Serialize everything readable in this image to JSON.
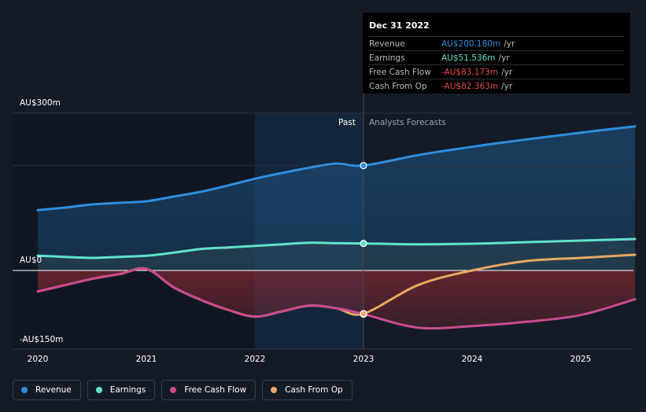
{
  "chart_data": {
    "type": "line",
    "title": "",
    "xlabel": "",
    "ylabel": "",
    "ylim": [
      -150,
      300
    ],
    "y_tick_labels": [
      "AU$300m",
      "AU$0",
      "-AU$150m"
    ],
    "x_ticks": [
      2020,
      2021,
      2022,
      2023,
      2024,
      2025
    ],
    "x_tick_labels": [
      "2020",
      "2021",
      "2022",
      "2023",
      "2024",
      "2025"
    ],
    "past_label": "Past",
    "forecast_label": "Analysts Forecasts",
    "divider_x": 2023.0,
    "highlight_start_x": 2022.0,
    "series": [
      {
        "name": "Revenue",
        "color": "#2d8fe0",
        "x": [
          2020.0,
          2020.25,
          2020.5,
          2020.75,
          2021.0,
          2021.25,
          2021.5,
          2021.75,
          2022.0,
          2022.25,
          2022.5,
          2022.75,
          2023.0,
          2023.5,
          2024.0,
          2024.5,
          2025.0,
          2025.5
        ],
        "values": [
          115,
          120,
          126,
          129,
          132,
          141,
          150,
          162,
          175,
          186,
          196,
          204,
          200.18,
          220,
          236,
          250,
          263,
          275
        ]
      },
      {
        "name": "Earnings",
        "color": "#5fe3c9",
        "x": [
          2020.0,
          2020.25,
          2020.5,
          2020.75,
          2021.0,
          2021.25,
          2021.5,
          2021.75,
          2022.0,
          2022.25,
          2022.5,
          2022.75,
          2023.0,
          2023.5,
          2024.0,
          2024.5,
          2025.0,
          2025.5
        ],
        "values": [
          28,
          26,
          24,
          26,
          28,
          34,
          41,
          44,
          47,
          50,
          53,
          52,
          51.536,
          50,
          51,
          54,
          57,
          60
        ]
      },
      {
        "name": "Free Cash Flow",
        "color": "#c94b8f",
        "x": [
          2020.0,
          2020.25,
          2020.5,
          2020.75,
          2021.0,
          2021.25,
          2021.5,
          2021.75,
          2022.0,
          2022.25,
          2022.5,
          2022.75,
          2023.0,
          2023.5,
          2024.0,
          2024.5,
          2025.0,
          2025.5
        ],
        "values": [
          -40,
          -28,
          -16,
          -7,
          3,
          -32,
          -56,
          -75,
          -88,
          -78,
          -67,
          -72,
          -83.173,
          -109,
          -106,
          -98,
          -85,
          -55
        ]
      },
      {
        "name": "Cash From Op",
        "color": "#e8a862",
        "x": [
          2020.0,
          2020.25,
          2020.5,
          2020.75,
          2021.0,
          2021.25,
          2021.5,
          2021.75,
          2022.0,
          2022.25,
          2022.5,
          2022.75,
          2023.0,
          2023.5,
          2024.0,
          2024.5,
          2025.0,
          2025.5
        ],
        "values": [
          -40,
          -28,
          -16,
          -7,
          3,
          -32,
          -56,
          -75,
          -88,
          -78,
          -67,
          -72,
          -82.363,
          -28,
          0,
          18,
          24,
          30
        ]
      }
    ]
  },
  "tooltip": {
    "date": "Dec 31 2022",
    "rows": [
      {
        "label": "Revenue",
        "value": "AU$200.180m",
        "unit": "/yr",
        "color": "#2d8fe0"
      },
      {
        "label": "Earnings",
        "value": "AU$51.536m",
        "unit": "/yr",
        "color": "#5fe3c9"
      },
      {
        "label": "Free Cash Flow",
        "value": "-AU$83.173m",
        "unit": "/yr",
        "color": "#e84a4a"
      },
      {
        "label": "Cash From Op",
        "value": "-AU$82.363m",
        "unit": "/yr",
        "color": "#e84a4a"
      }
    ]
  },
  "legend": [
    {
      "label": "Revenue",
      "color": "#2d8fe0"
    },
    {
      "label": "Earnings",
      "color": "#5fe3c9"
    },
    {
      "label": "Free Cash Flow",
      "color": "#c94b8f"
    },
    {
      "label": "Cash From Op",
      "color": "#e8a862"
    }
  ]
}
